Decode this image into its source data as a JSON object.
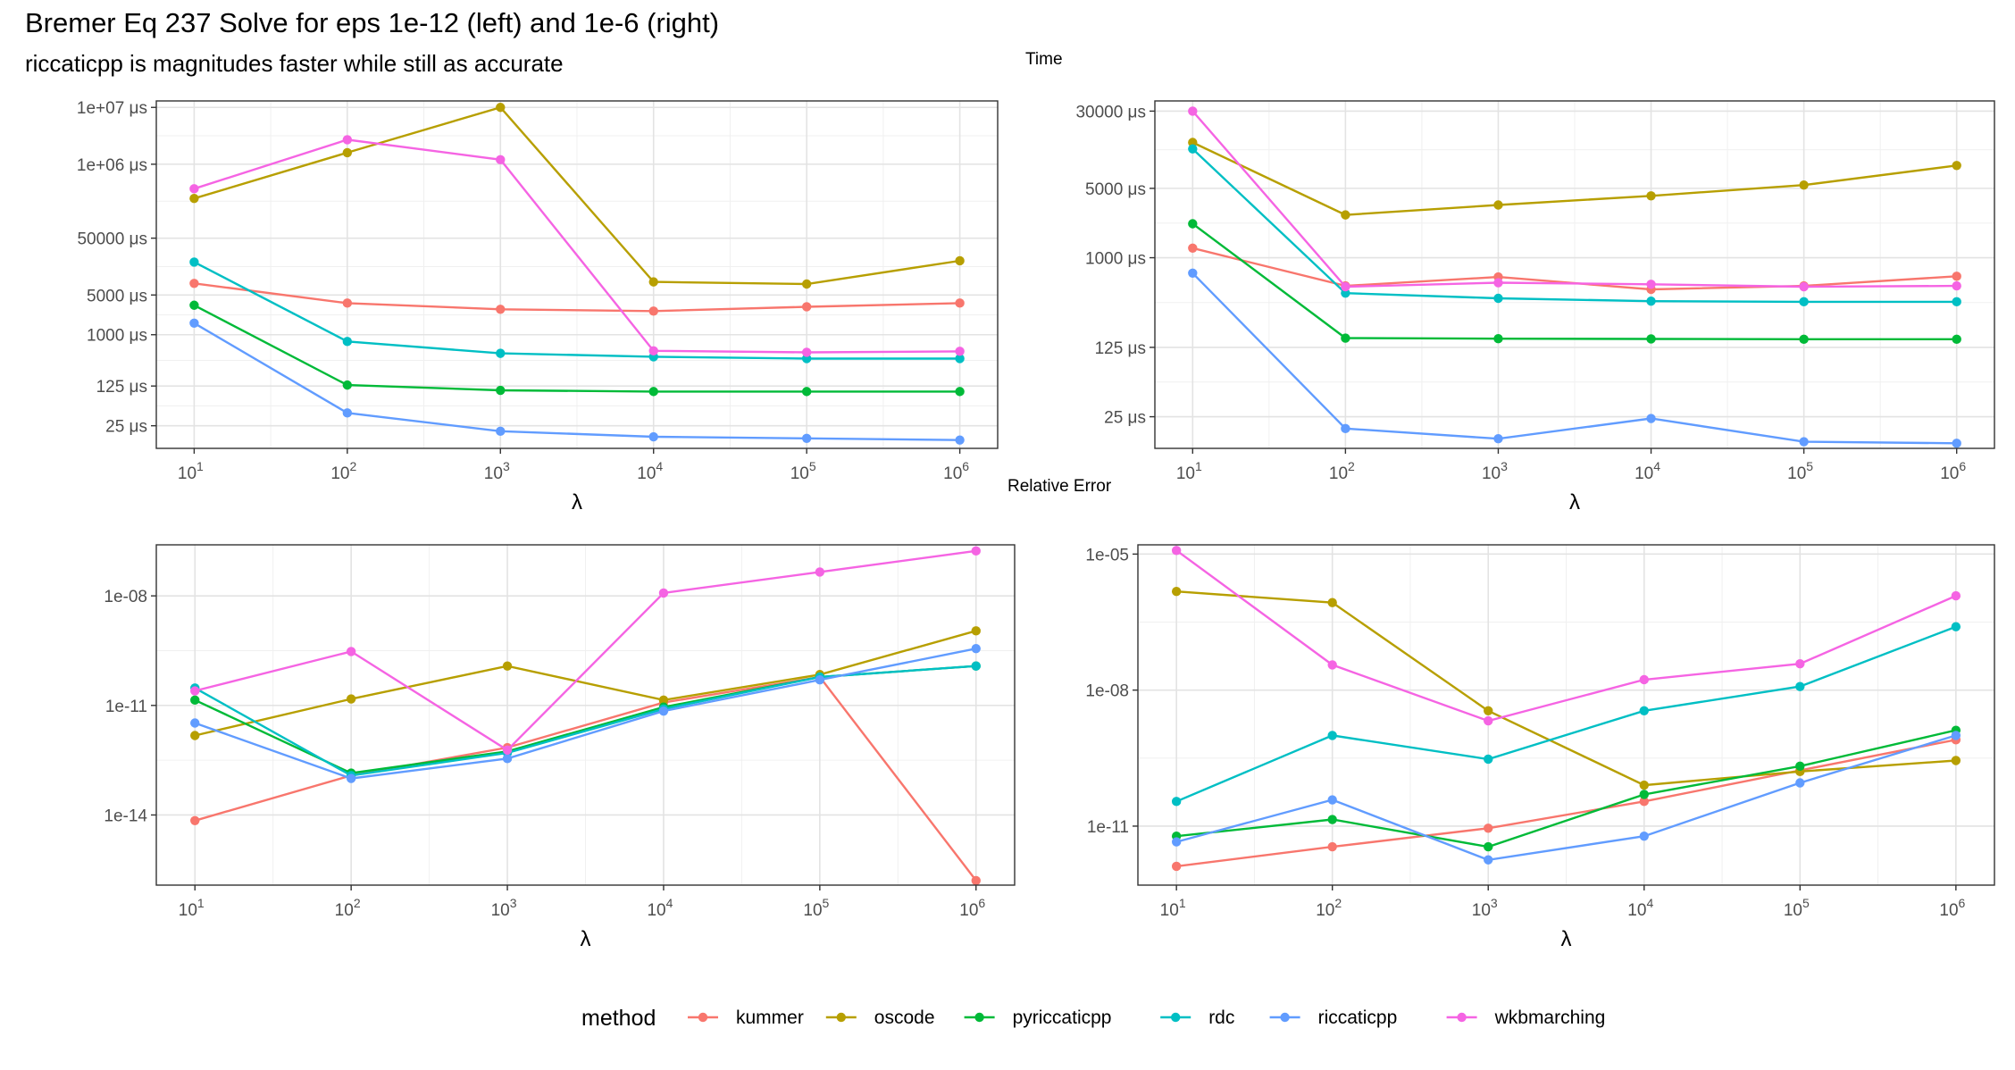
{
  "title": "Bremer Eq 237 Solve for eps 1e-12 (left) and 1e-6 (right)",
  "subtitle": "riccaticpp is magnitudes faster while still as accurate",
  "row_labels": {
    "top": "Time",
    "bottom": "Relative Error"
  },
  "legend": {
    "title": "method",
    "items": [
      {
        "name": "kummer",
        "color": "#F8766D"
      },
      {
        "name": "oscode",
        "color": "#B79F00"
      },
      {
        "name": "pyriccaticpp",
        "color": "#00BA38"
      },
      {
        "name": "rdc",
        "color": "#00BFC4"
      },
      {
        "name": "riccaticpp",
        "color": "#619CFF"
      },
      {
        "name": "wkbmarching",
        "color": "#F564E3"
      }
    ]
  },
  "chart_data": [
    {
      "type": "line",
      "panel": "top-left",
      "xlabel": "λ",
      "x": [
        10,
        100,
        1000,
        10000,
        100000,
        1000000
      ],
      "x_tick_labels": [
        "10^1",
        "10^2",
        "10^3",
        "10^4",
        "10^5",
        "10^6"
      ],
      "yscale": "log",
      "y_ticks": [
        25,
        125,
        1000,
        5000,
        50000,
        1000000,
        10000000
      ],
      "y_tick_labels": [
        "25 μs",
        "125 μs",
        "1000 μs",
        "5000 μs",
        "50000 μs",
        "1e+06 μs",
        "1e+07 μs"
      ],
      "ylim": [
        10,
        13000000
      ],
      "series": [
        {
          "name": "kummer",
          "values": [
            8000,
            3600,
            2800,
            2600,
            3100,
            3600
          ]
        },
        {
          "name": "oscode",
          "values": [
            250000,
            1600000,
            10000000,
            8500,
            7800,
            20000
          ]
        },
        {
          "name": "pyriccaticpp",
          "values": [
            3300,
            130,
            105,
            100,
            100,
            100
          ]
        },
        {
          "name": "rdc",
          "values": [
            19000,
            760,
            470,
            410,
            380,
            380
          ]
        },
        {
          "name": "riccaticpp",
          "values": [
            1600,
            42,
            20,
            16,
            15,
            14
          ]
        },
        {
          "name": "wkbmarching",
          "values": [
            370000,
            2700000,
            1200000,
            520,
            490,
            510
          ]
        }
      ]
    },
    {
      "type": "line",
      "panel": "top-right",
      "xlabel": "λ",
      "x": [
        10,
        100,
        1000,
        10000,
        100000,
        1000000
      ],
      "x_tick_labels": [
        "10^1",
        "10^2",
        "10^3",
        "10^4",
        "10^5",
        "10^6"
      ],
      "yscale": "log",
      "y_ticks": [
        25,
        125,
        1000,
        5000,
        30000
      ],
      "y_tick_labels": [
        "25 μs",
        "125 μs",
        "1000 μs",
        "5000 μs",
        "30000 μs"
      ],
      "ylim": [
        12,
        38000
      ],
      "series": [
        {
          "name": "kummer",
          "values": [
            1250,
            520,
            640,
            480,
            520,
            650
          ]
        },
        {
          "name": "oscode",
          "values": [
            14500,
            2700,
            3400,
            4200,
            5400,
            8500
          ]
        },
        {
          "name": "pyriccaticpp",
          "values": [
            2200,
            155,
            153,
            152,
            151,
            151
          ]
        },
        {
          "name": "rdc",
          "values": [
            12500,
            440,
            390,
            365,
            360,
            360
          ]
        },
        {
          "name": "riccaticpp",
          "values": [
            700,
            19,
            15,
            24,
            14,
            13.5
          ]
        },
        {
          "name": "wkbmarching",
          "values": [
            30000,
            510,
            560,
            540,
            510,
            520
          ]
        }
      ]
    },
    {
      "type": "line",
      "panel": "bottom-left",
      "xlabel": "λ",
      "x": [
        10,
        100,
        1000,
        10000,
        100000,
        1000000
      ],
      "x_tick_labels": [
        "10^1",
        "10^2",
        "10^3",
        "10^4",
        "10^5",
        "10^6"
      ],
      "yscale": "log",
      "y_ticks": [
        1e-14,
        1e-11,
        1e-08
      ],
      "y_tick_labels": [
        "1e-14",
        "1e-11",
        "1e-08"
      ],
      "ylim": [
        1.2e-16,
        2.5e-07
      ],
      "series": [
        {
          "name": "kummer",
          "values": [
            7e-15,
            1.2e-13,
            7e-13,
            1.2e-11,
            6e-11,
            1.6e-16
          ]
        },
        {
          "name": "oscode",
          "values": [
            1.5e-12,
            1.5e-11,
            1.2e-10,
            1.4e-11,
            7e-11,
            1.1e-09
          ]
        },
        {
          "name": "pyriccaticpp",
          "values": [
            1.4e-11,
            1.4e-13,
            5.5e-13,
            9e-12,
            6e-11,
            1.2e-10
          ]
        },
        {
          "name": "rdc",
          "values": [
            3e-11,
            1.2e-13,
            5e-13,
            8e-12,
            6e-11,
            1.2e-10
          ]
        },
        {
          "name": "riccaticpp",
          "values": [
            3.3e-12,
            1e-13,
            3.5e-13,
            7e-12,
            5e-11,
            3.6e-10
          ]
        },
        {
          "name": "wkbmarching",
          "values": [
            2.5e-11,
            3e-10,
            6e-13,
            1.2e-08,
            4.5e-08,
            1.7e-07
          ]
        }
      ]
    },
    {
      "type": "line",
      "panel": "bottom-right",
      "xlabel": "λ",
      "x": [
        10,
        100,
        1000,
        10000,
        100000,
        1000000
      ],
      "x_tick_labels": [
        "10^1",
        "10^2",
        "10^3",
        "10^4",
        "10^5",
        "10^6"
      ],
      "yscale": "log",
      "y_ticks": [
        1e-11,
        1e-08,
        1e-05
      ],
      "y_tick_labels": [
        "1e-11",
        "1e-08",
        "1e-05"
      ],
      "ylim": [
        5e-13,
        1.6e-05
      ],
      "series": [
        {
          "name": "kummer",
          "values": [
            1.3e-12,
            3.5e-12,
            9e-12,
            3.5e-11,
            1.7e-10,
            8e-10
          ]
        },
        {
          "name": "oscode",
          "values": [
            1.5e-06,
            8.5e-07,
            3.5e-09,
            8e-11,
            1.6e-10,
            2.8e-10
          ]
        },
        {
          "name": "pyriccaticpp",
          "values": [
            6e-12,
            1.4e-11,
            3.5e-12,
            5e-11,
            2.1e-10,
            1.3e-09
          ]
        },
        {
          "name": "rdc",
          "values": [
            3.5e-11,
            1e-09,
            3e-10,
            3.5e-09,
            1.2e-08,
            2.5e-07
          ]
        },
        {
          "name": "riccaticpp",
          "values": [
            4.5e-12,
            3.8e-11,
            1.8e-12,
            6e-12,
            9e-11,
            1e-09
          ]
        },
        {
          "name": "wkbmarching",
          "values": [
            1.2e-05,
            3.6e-08,
            2.1e-09,
            1.7e-08,
            3.8e-08,
            1.2e-06
          ]
        }
      ]
    }
  ]
}
